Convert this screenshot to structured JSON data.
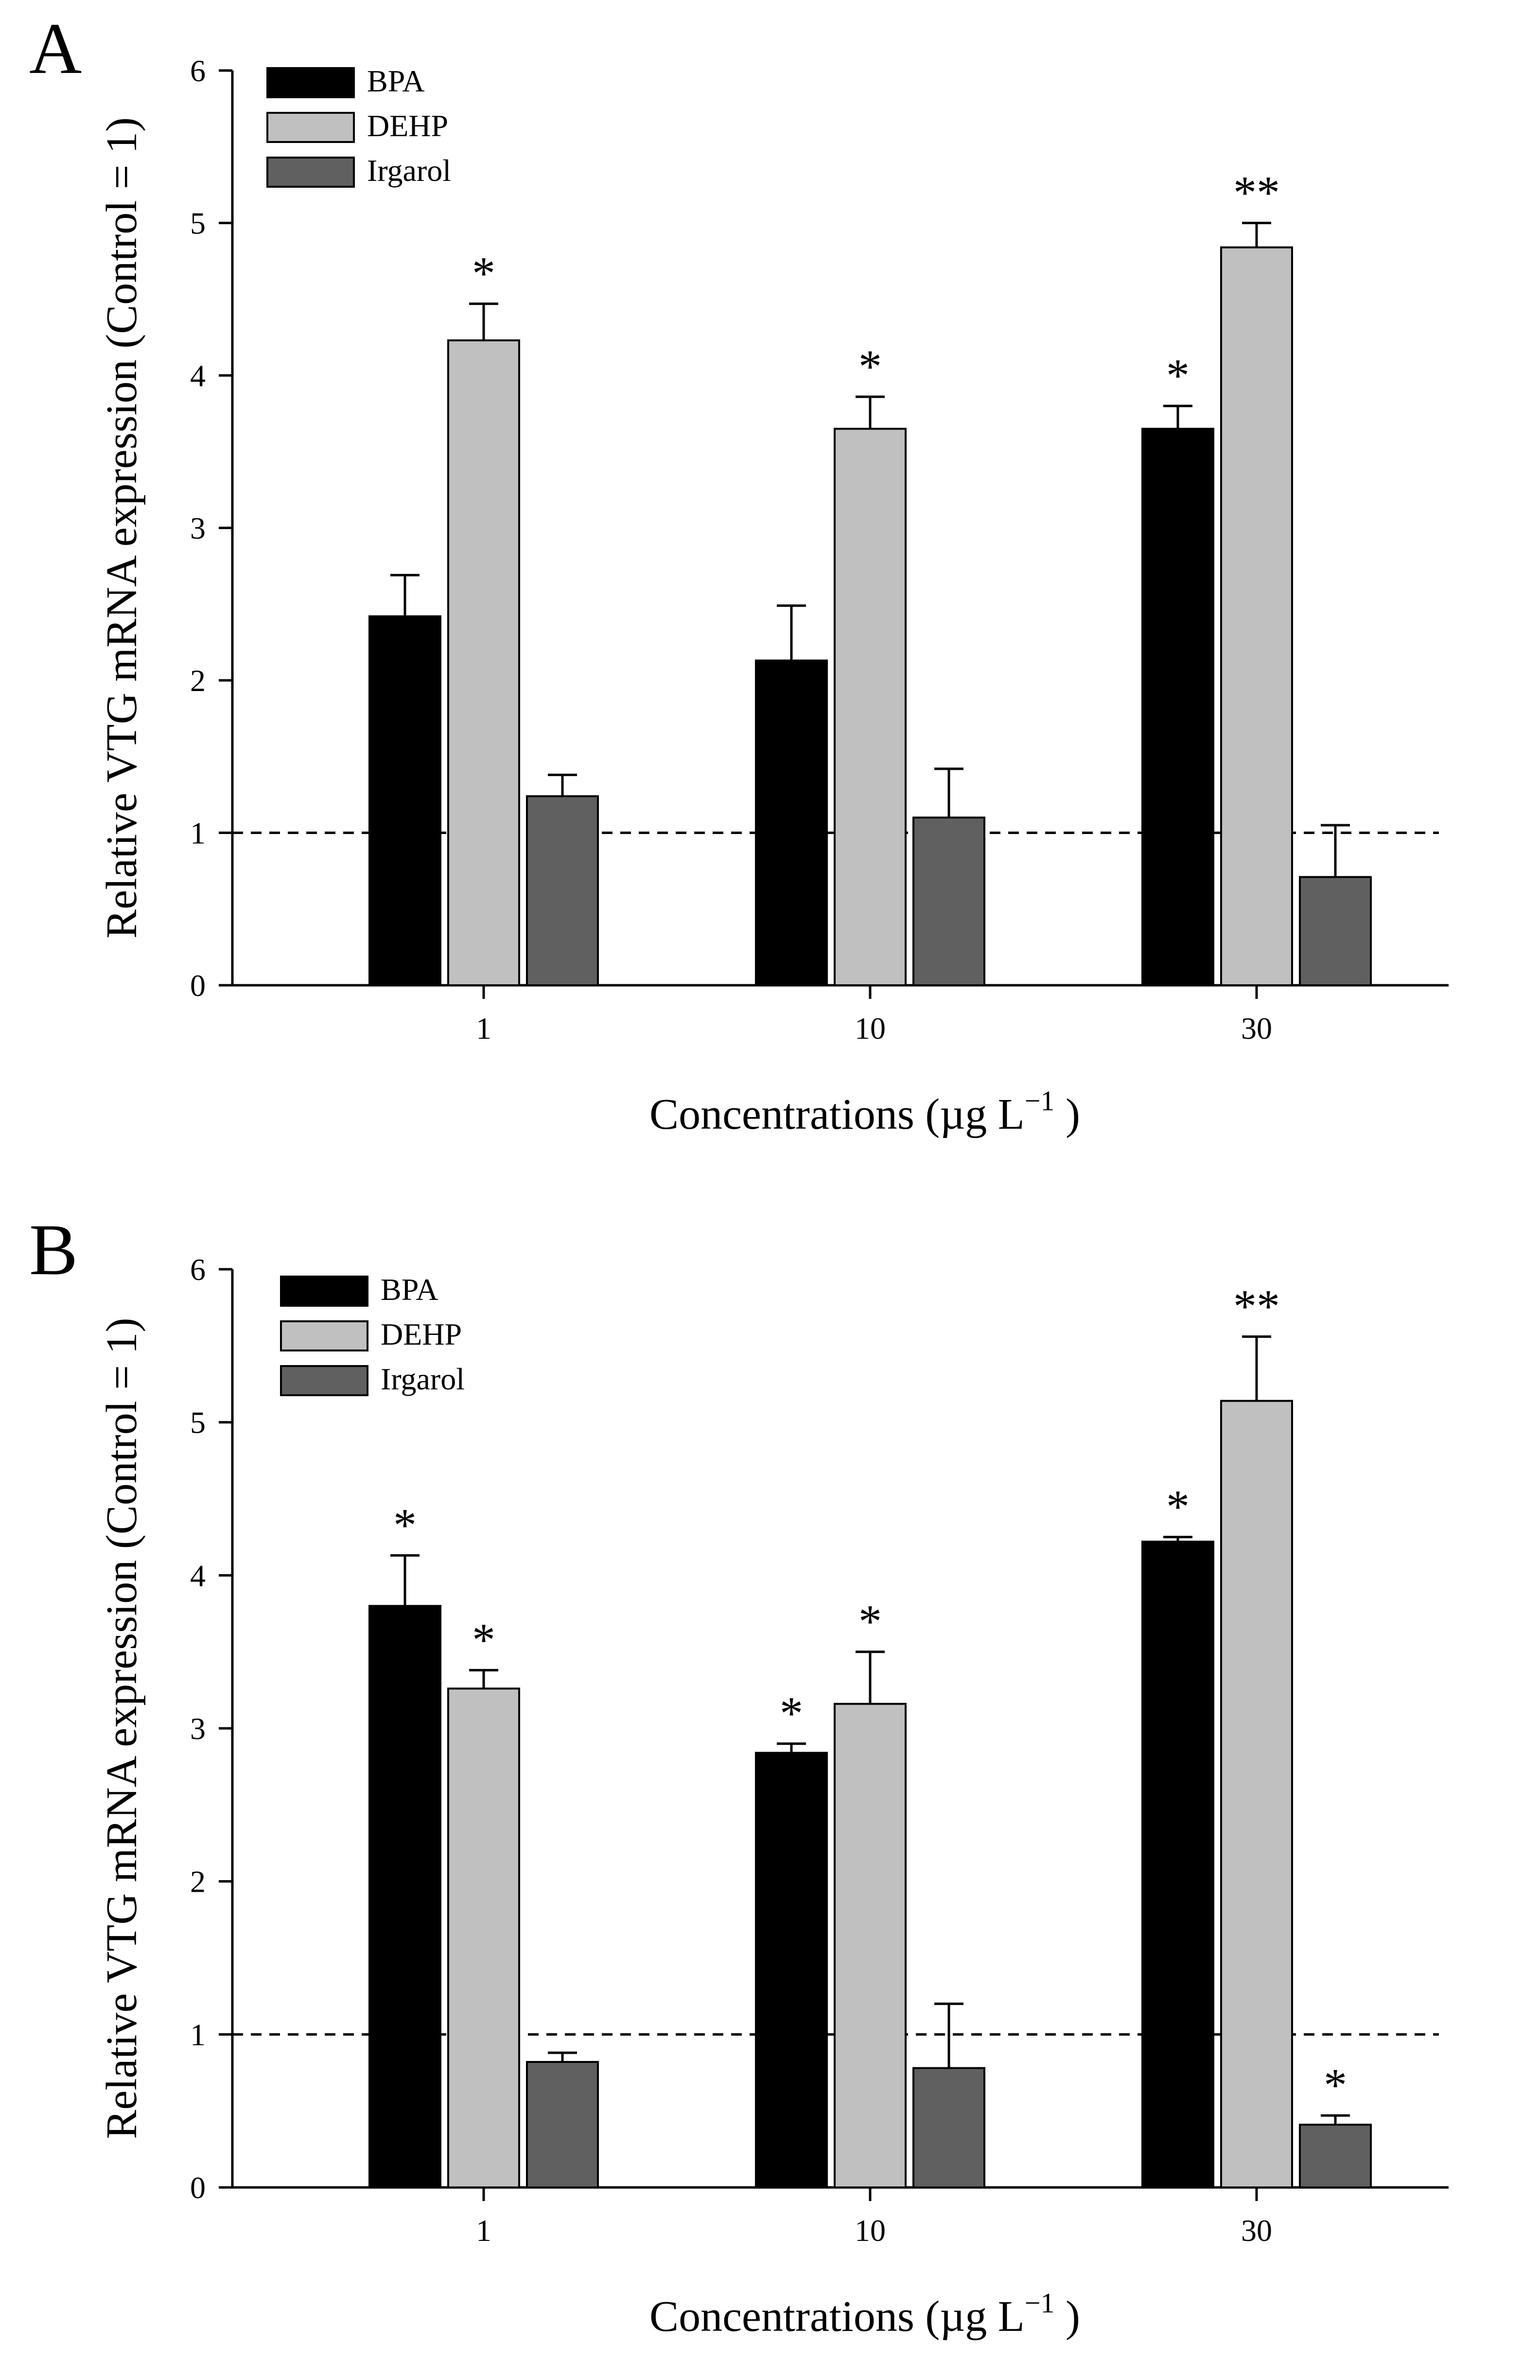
{
  "colors": {
    "BPA": "#000000",
    "DEHP": "#c0c0c0",
    "Irgarol": "#606060",
    "axis": "#000000"
  },
  "chart_data": [
    {
      "type": "bar",
      "panel": "A",
      "categories": [
        "1",
        "10",
        "30"
      ],
      "xlabel": "Concentrations (µg L",
      "xlabel_sup": "−1",
      "xlabel_close": " )",
      "ylabel": "Relative VTG mRNA expression (Control = 1)",
      "ylim": [
        0,
        6
      ],
      "yticks": [
        "0",
        "1",
        "2",
        "3",
        "4",
        "5",
        "6"
      ],
      "reference_line": 1,
      "legend_position": "top-left",
      "series": [
        {
          "name": "BPA",
          "values": [
            2.42,
            2.13,
            3.65
          ],
          "errors": [
            0.27,
            0.36,
            0.15
          ],
          "sig": [
            "",
            "",
            "*"
          ]
        },
        {
          "name": "DEHP",
          "values": [
            4.23,
            3.65,
            4.84
          ],
          "errors": [
            0.24,
            0.21,
            0.16
          ],
          "sig": [
            "*",
            "*",
            "**"
          ]
        },
        {
          "name": "Irgarol",
          "values": [
            1.24,
            1.1,
            0.71
          ],
          "errors": [
            0.14,
            0.32,
            0.34
          ],
          "sig": [
            "",
            "",
            ""
          ]
        }
      ]
    },
    {
      "type": "bar",
      "panel": "B",
      "categories": [
        "1",
        "10",
        "30"
      ],
      "xlabel": "Concentrations (µg L",
      "xlabel_sup": "−1",
      "xlabel_close": " )",
      "ylabel": "Relative VTG mRNA expression (Control = 1)",
      "ylim": [
        0,
        6
      ],
      "yticks": [
        "0",
        "1",
        "2",
        "3",
        "4",
        "5",
        "6"
      ],
      "reference_line": 1,
      "legend_position": "top-left",
      "series": [
        {
          "name": "BPA",
          "values": [
            3.8,
            2.84,
            4.22
          ],
          "errors": [
            0.33,
            0.06,
            0.03
          ],
          "sig": [
            "*",
            "*",
            "*"
          ]
        },
        {
          "name": "DEHP",
          "values": [
            3.26,
            3.16,
            5.14
          ],
          "errors": [
            0.12,
            0.34,
            0.42
          ],
          "sig": [
            "*",
            "*",
            "**"
          ]
        },
        {
          "name": "Irgarol",
          "values": [
            0.82,
            0.78,
            0.41
          ],
          "errors": [
            0.06,
            0.42,
            0.06
          ],
          "sig": [
            "",
            "",
            "*"
          ]
        }
      ]
    }
  ]
}
